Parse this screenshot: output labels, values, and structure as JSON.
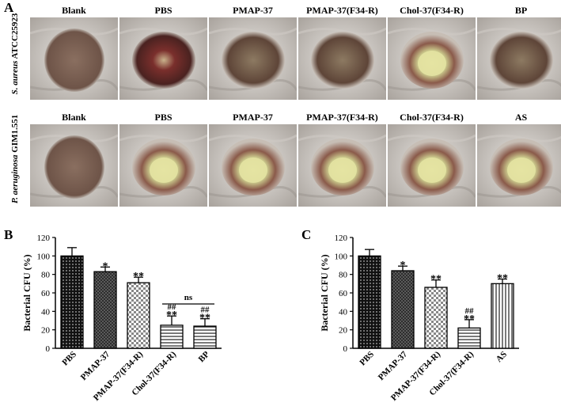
{
  "panel_a": {
    "letter": "A",
    "row1": {
      "organism_italic": "S. aureus",
      "strain": " ATCC25923",
      "labels": [
        "Blank",
        "PBS",
        "PMAP-37",
        "PMAP-37(F34-R)",
        "Chol-37(F34-R)",
        "BP"
      ]
    },
    "row2": {
      "organism_italic": "P. aeruginosa",
      "strain": " GIM1.551",
      "labels": [
        "Blank",
        "PBS",
        "PMAP-37",
        "PMAP-37(F34-R)",
        "Chol-37(F34-R)",
        "AS"
      ]
    }
  },
  "chart_data": [
    {
      "panel": "B",
      "type": "bar",
      "ylabel": "Bacterial CFU (%)",
      "ylim": [
        0,
        120
      ],
      "yticks": [
        0,
        20,
        40,
        60,
        80,
        100,
        120
      ],
      "categories": [
        "PBS",
        "PMAP-37",
        "PMAP-37(F34-R)",
        "Chol-37(F34-R)",
        "BP"
      ],
      "values": [
        100,
        83,
        71,
        25,
        24
      ],
      "errors": [
        9,
        5,
        6,
        10,
        8
      ],
      "annotations": [
        [
          "",
          ""
        ],
        [
          "*",
          ""
        ],
        [
          "**",
          ""
        ],
        [
          "**",
          "##"
        ],
        [
          "**",
          "##"
        ]
      ],
      "comparison": {
        "from": 3,
        "to": 4,
        "label": "ns"
      }
    },
    {
      "panel": "C",
      "type": "bar",
      "ylabel": "Bacterial CFU (%)",
      "ylim": [
        0,
        120
      ],
      "yticks": [
        0,
        20,
        40,
        60,
        80,
        100,
        120
      ],
      "categories": [
        "PBS",
        "PMAP-37",
        "PMAP-37(F34-R)",
        "Chol-37(F34-R)",
        "AS"
      ],
      "values": [
        100,
        84,
        66,
        22,
        70
      ],
      "errors": [
        7,
        5,
        8,
        9,
        5
      ],
      "annotations": [
        [
          "",
          ""
        ],
        [
          "*",
          ""
        ],
        [
          "**",
          ""
        ],
        [
          "**",
          "##"
        ],
        [
          "**",
          ""
        ]
      ]
    }
  ]
}
